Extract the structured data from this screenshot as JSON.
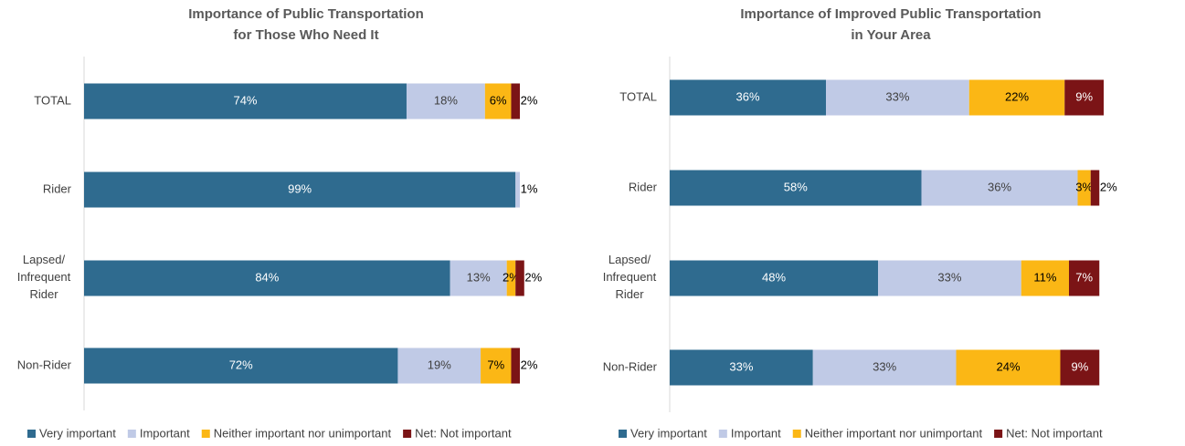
{
  "chart_data": [
    {
      "type": "bar",
      "orientation": "horizontal",
      "stacked": true,
      "title": [
        "Importance of Public Transportation",
        "for Those Who Need It"
      ],
      "categories": [
        "TOTAL",
        "Rider",
        "Lapsed/ Infrequent Rider",
        "Non-Rider"
      ],
      "series": [
        {
          "name": "Very important",
          "color": "#2f6b8f",
          "values": [
            74,
            99,
            84,
            72
          ],
          "value_labels": [
            "74%",
            "99%",
            "84%",
            "72%"
          ]
        },
        {
          "name": "Important",
          "color": "#c0cae6",
          "values": [
            18,
            1,
            13,
            19
          ],
          "value_labels": [
            "18%",
            "1%",
            "13%",
            "19%"
          ]
        },
        {
          "name": "Neither important nor unimportant",
          "color": "#fbb715",
          "values": [
            6,
            0,
            2,
            7
          ],
          "value_labels": [
            "6%",
            null,
            "2%",
            "7%"
          ]
        },
        {
          "name": "Net: Not important",
          "color": "#7b1416",
          "values": [
            2,
            0,
            2,
            2
          ],
          "value_labels": [
            "2%",
            null,
            "2%",
            "2%"
          ]
        }
      ]
    },
    {
      "type": "bar",
      "orientation": "horizontal",
      "stacked": true,
      "title": [
        "Importance of Improved Public Transportation",
        "in Your Area"
      ],
      "categories": [
        "TOTAL",
        "Rider",
        "Lapsed/ Infrequent Rider",
        "Non-Rider"
      ],
      "series": [
        {
          "name": "Very important",
          "color": "#2f6b8f",
          "values": [
            36,
            58,
            48,
            33
          ],
          "value_labels": [
            "36%",
            "58%",
            "48%",
            "33%"
          ]
        },
        {
          "name": "Important",
          "color": "#c0cae6",
          "values": [
            33,
            36,
            33,
            33
          ],
          "value_labels": [
            "33%",
            "36%",
            "33%",
            "33%"
          ]
        },
        {
          "name": "Neither important nor unimportant",
          "color": "#fbb715",
          "values": [
            22,
            3,
            11,
            24
          ],
          "value_labels": [
            "22%",
            "3%",
            "11%",
            "24%"
          ]
        },
        {
          "name": "Net: Not important",
          "color": "#7b1416",
          "values": [
            9,
            2,
            7,
            9
          ],
          "value_labels": [
            "9%",
            "2%",
            "7%",
            "9%"
          ]
        }
      ]
    }
  ]
}
